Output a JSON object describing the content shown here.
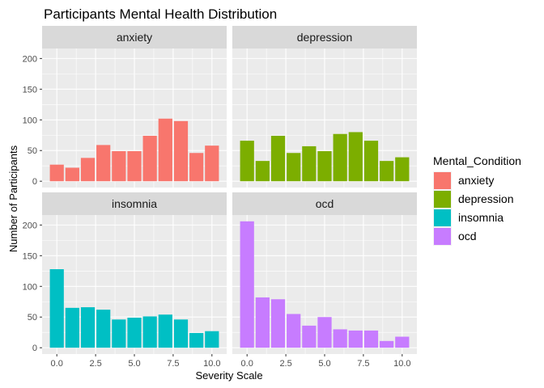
{
  "chart_data": {
    "type": "bar",
    "title": "Participants Mental Health Distribution",
    "xlabel": "Severity Scale",
    "ylabel": "Number of Participants",
    "x": [
      0,
      1,
      2,
      3,
      4,
      5,
      6,
      7,
      8,
      9,
      10
    ],
    "xticks": [
      "0.0",
      "2.5",
      "5.0",
      "7.5",
      "10.0"
    ],
    "xtick_values": [
      0,
      2.5,
      5,
      7.5,
      10
    ],
    "yticks": [
      "0",
      "50",
      "100",
      "150",
      "200"
    ],
    "ytick_values": [
      0,
      50,
      100,
      150,
      200
    ],
    "xlim": [
      -0.95,
      10.95
    ],
    "ylim": [
      -10.3,
      216.3
    ],
    "legend": {
      "title": "Mental_Condition",
      "position": "right"
    },
    "grid": true,
    "facets": [
      {
        "name": "anxiety",
        "color": "#F8766D",
        "values": [
          27,
          22,
          38,
          59,
          49,
          49,
          74,
          102,
          98,
          46,
          58
        ]
      },
      {
        "name": "depression",
        "color": "#7CAE00",
        "values": [
          66,
          33,
          74,
          46,
          57,
          49,
          77,
          80,
          66,
          33,
          39
        ]
      },
      {
        "name": "insomnia",
        "color": "#00BFC4",
        "values": [
          128,
          65,
          66,
          62,
          46,
          49,
          51,
          54,
          46,
          24,
          27
        ]
      },
      {
        "name": "ocd",
        "color": "#C77CFF",
        "values": [
          206,
          82,
          79,
          55,
          36,
          50,
          30,
          28,
          28,
          11,
          18
        ]
      }
    ]
  }
}
